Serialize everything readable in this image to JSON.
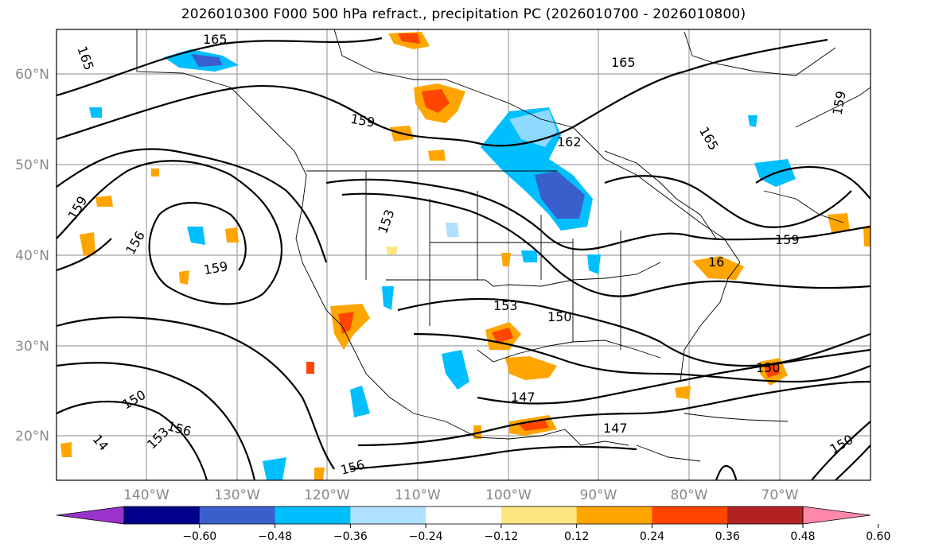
{
  "title": "2026010300 F000 500 hPa refract., precipitation PC (2026010700 - 2026010800)",
  "lat_labels": [
    "60°N",
    "50°N",
    "40°N",
    "30°N",
    "20°N"
  ],
  "lon_labels": [
    "140°W",
    "130°W",
    "120°W",
    "110°W",
    "100°W",
    "90°W",
    "80°W",
    "70°W"
  ],
  "colorbar": {
    "tick_labels": [
      "−0.60",
      "−0.48",
      "−0.36",
      "−0.24",
      "−0.12",
      "0.12",
      "0.24",
      "0.36",
      "0.48",
      "0.60"
    ],
    "colors": [
      "#9933cc",
      "#00008b",
      "#3a5fcd",
      "#00bfff",
      "#b0e0ff",
      "#ffffff",
      "#ffe680",
      "#ffa500",
      "#ff4500",
      "#b22222",
      "#ff88aa"
    ]
  },
  "contour_labels": [
    "165",
    "165",
    "165",
    "162",
    "159",
    "159",
    "159",
    "159",
    "159",
    "156",
    "156",
    "156",
    "153",
    "153",
    "153",
    "150",
    "150",
    "150",
    "150",
    "147",
    "147",
    "14",
    "16",
    "165"
  ]
}
